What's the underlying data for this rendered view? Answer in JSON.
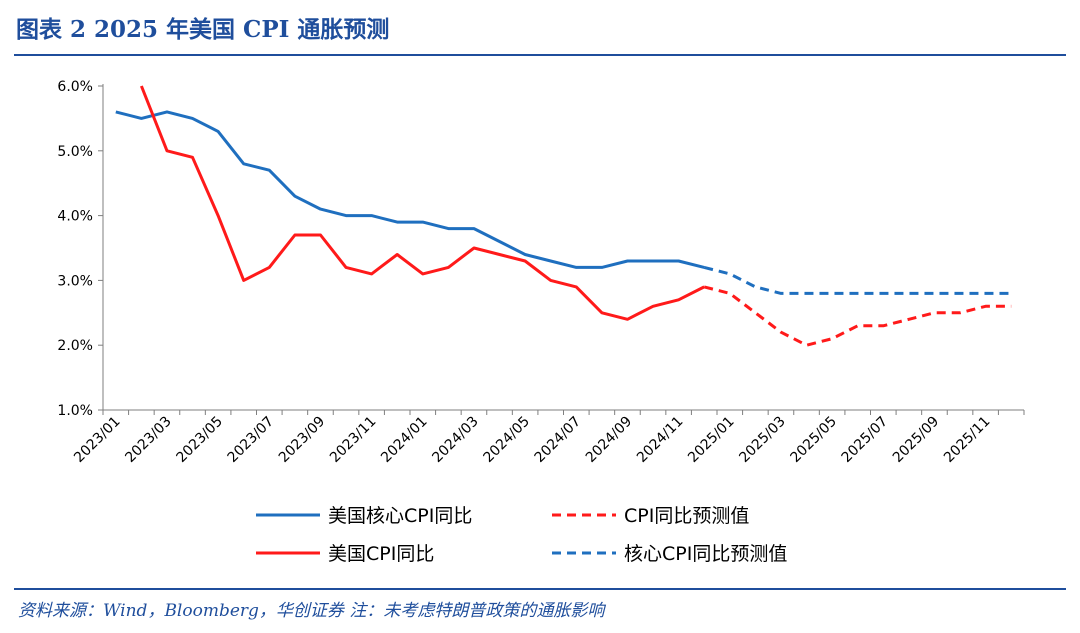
{
  "header": {
    "title": "图表 2   2025 年美国 CPI 通胀预测"
  },
  "footer": {
    "source": "资料来源：Wind，Bloomberg，华创证券 注：未考虑特朗普政策的通胀影响"
  },
  "chart_data": {
    "type": "line",
    "y_ticks": [
      "1.0%",
      "2.0%",
      "3.0%",
      "4.0%",
      "5.0%",
      "6.0%"
    ],
    "ylim": [
      1.0,
      6.0
    ],
    "x_tick_labels": [
      "2023/01",
      "2023/03",
      "2023/05",
      "2023/07",
      "2023/09",
      "2023/11",
      "2024/01",
      "2024/03",
      "2024/05",
      "2024/07",
      "2024/09",
      "2024/11",
      "2025/01",
      "2025/03",
      "2025/05",
      "2025/07",
      "2025/09",
      "2025/11"
    ],
    "x_categories": [
      "2023/01",
      "2023/02",
      "2023/03",
      "2023/04",
      "2023/05",
      "2023/06",
      "2023/07",
      "2023/08",
      "2023/09",
      "2023/10",
      "2023/11",
      "2023/12",
      "2024/01",
      "2024/02",
      "2024/03",
      "2024/04",
      "2024/05",
      "2024/06",
      "2024/07",
      "2024/08",
      "2024/09",
      "2024/10",
      "2024/11",
      "2024/12",
      "2025/01",
      "2025/02",
      "2025/03",
      "2025/04",
      "2025/05",
      "2025/06",
      "2025/07",
      "2025/08",
      "2025/09",
      "2025/10",
      "2025/11",
      "2025/12"
    ],
    "series": [
      {
        "name": "美国核心CPI同比",
        "color": "#1F6FBF",
        "dash": "solid",
        "start_index": 0,
        "values": [
          5.6,
          5.5,
          5.6,
          5.5,
          5.3,
          4.8,
          4.7,
          4.3,
          4.1,
          4.0,
          4.0,
          3.9,
          3.9,
          3.8,
          3.8,
          3.6,
          3.4,
          3.3,
          3.2,
          3.2,
          3.3,
          3.3,
          3.3,
          3.2
        ]
      },
      {
        "name": "美国CPI同比",
        "color": "#FF1A1A",
        "dash": "solid",
        "start_index": 1,
        "values": [
          6.0,
          5.0,
          4.9,
          4.0,
          3.0,
          3.2,
          3.7,
          3.7,
          3.2,
          3.1,
          3.4,
          3.1,
          3.2,
          3.5,
          3.4,
          3.3,
          3.0,
          2.9,
          2.5,
          2.4,
          2.6,
          2.7,
          2.9
        ]
      },
      {
        "name": "CPI同比预测值",
        "color": "#FF1A1A",
        "dash": "dashed",
        "start_index": 23,
        "values": [
          2.9,
          2.8,
          2.5,
          2.2,
          2.0,
          2.1,
          2.3,
          2.3,
          2.4,
          2.5,
          2.5,
          2.6,
          2.6
        ]
      },
      {
        "name": "核心CPI同比预测值",
        "color": "#1F6FBF",
        "dash": "dashed",
        "start_index": 23,
        "values": [
          3.2,
          3.1,
          2.9,
          2.8,
          2.8,
          2.8,
          2.8,
          2.8,
          2.8,
          2.8,
          2.8,
          2.8,
          2.8
        ]
      }
    ],
    "legend": {
      "placement": "bottom",
      "items": [
        {
          "label": "美国核心CPI同比",
          "color": "#1F6FBF",
          "dash": "solid"
        },
        {
          "label": "CPI同比预测值",
          "color": "#FF1A1A",
          "dash": "dashed"
        },
        {
          "label": "美国CPI同比",
          "color": "#FF1A1A",
          "dash": "solid"
        },
        {
          "label": "核心CPI同比预测值",
          "color": "#1F6FBF",
          "dash": "dashed"
        }
      ]
    },
    "grid": false
  }
}
